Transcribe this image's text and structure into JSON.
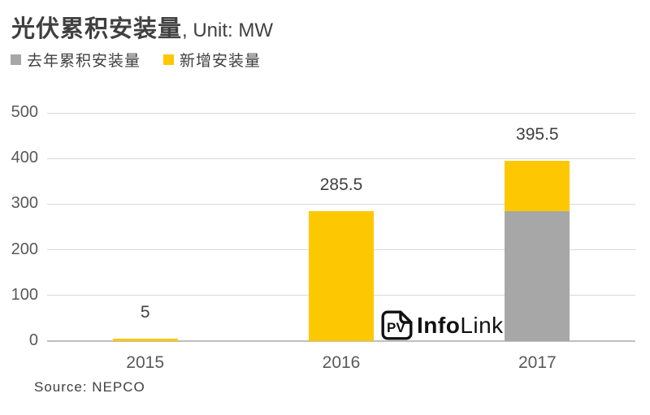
{
  "header": {
    "title": "光伏累积安装量",
    "title_suffix": ", Unit: MW"
  },
  "legend": [
    {
      "label": "去年累积安装量",
      "color": "#a7a7a7"
    },
    {
      "label": "新增安装量",
      "color": "#fdc802"
    }
  ],
  "chart_data": {
    "type": "bar",
    "stacked": true,
    "title": "光伏累积安装量, Unit: MW",
    "unit": "MW",
    "categories": [
      "2015",
      "2016",
      "2017"
    ],
    "series": [
      {
        "name": "去年累积安装量",
        "color": "#a7a7a7",
        "values": [
          0,
          0,
          285.5
        ]
      },
      {
        "name": "新增安装量",
        "color": "#fdc802",
        "values": [
          5,
          285.5,
          110
        ]
      }
    ],
    "totals": [
      5,
      285.5,
      395.5
    ],
    "data_labels": [
      "5",
      "285.5",
      "395.5"
    ],
    "y_ticks": [
      0,
      100,
      200,
      300,
      400,
      500
    ],
    "ylim": [
      0,
      500
    ],
    "grid": true,
    "legend_position": "top-left"
  },
  "watermark": {
    "icon_text": "PV",
    "brand_bold": "Info",
    "brand_regular": "Link"
  },
  "footer": {
    "source": "Source: NEPCO"
  },
  "colors": {
    "bar_gray": "#a7a7a7",
    "bar_yellow": "#fdc802",
    "gridline": "#d9d9d9",
    "axis_line": "#bfbfbf",
    "title_text": "#404040",
    "tick_text": "#595959",
    "logo_text": "#111111"
  }
}
